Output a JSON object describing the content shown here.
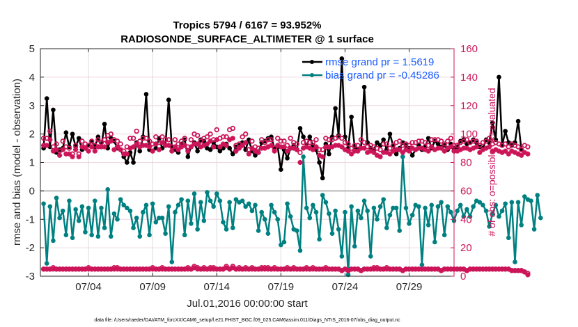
{
  "chart_data": {
    "type": "line",
    "title": [
      "Tropics 5794 / 6167 = 93.952%",
      "RADIOSONDE_SURFACE_ALTIMETER @ 1 surface"
    ],
    "xlabel": "Jul.01,2016 00:00:00 start",
    "ylabel": "rmse and bias (model - observation)",
    "y2label": "# of obs: o=possible; ∗=evaluated",
    "ylim": [
      -3,
      5
    ],
    "y2lim": [
      0,
      160
    ],
    "yticks": [
      "-3",
      "-2",
      "-1",
      "0",
      "1",
      "2",
      "3",
      "4",
      "5"
    ],
    "y2ticks": [
      "0",
      "20",
      "40",
      "60",
      "80",
      "100",
      "120",
      "140",
      "160"
    ],
    "xticks": [
      "07/04",
      "07/09",
      "07/14",
      "07/19",
      "07/24",
      "07/29"
    ],
    "xtick_days": [
      3,
      8,
      13,
      18,
      23,
      28
    ],
    "xlim_days": [
      -0.75,
      31.5
    ],
    "x_start_day": -0.5,
    "x_step_day": 0.25,
    "legend_position": "top-right",
    "series": [
      {
        "name": "rmse grand pr = 1.5619",
        "color": "#000000",
        "axis": "left",
        "values": [
          1.5,
          3.25,
          1.55,
          2.85,
          1.35,
          1.45,
          1.5,
          2.05,
          1.55,
          2.0,
          1.55,
          1.85,
          1.45,
          1.5,
          1.6,
          1.75,
          1.55,
          1.9,
          1.55,
          2.35,
          1.5,
          1.85,
          1.75,
          1.5,
          1.45,
          1.2,
          1.0,
          1.35,
          1.0,
          1.7,
          1.4,
          1.9,
          3.4,
          1.45,
          1.4,
          1.5,
          1.85,
          1.5,
          1.6,
          3.2,
          1.55,
          1.45,
          1.35,
          1.65,
          1.8,
          1.2,
          1.55,
          1.7,
          1.4,
          1.8,
          1.75,
          1.5,
          1.45,
          1.7,
          1.55,
          1.4,
          1.5,
          1.65,
          1.5,
          1.3,
          1.55,
          1.6,
          1.7,
          1.45,
          1.8,
          1.4,
          1.25,
          1.35,
          1.7,
          1.75,
          1.85,
          1.9,
          1.5,
          1.55,
          0.75,
          1.45,
          1.15,
          1.5,
          1.6,
          1.45,
          2.2,
          1.9,
          1.55,
          1.9,
          1.6,
          1.45,
          1.0,
          0.45,
          1.65,
          1.3,
          1.9,
          2.9,
          1.95,
          4.65,
          1.9,
          1.5,
          2.6,
          1.55,
          1.45,
          1.5,
          3.65,
          1.7,
          1.5,
          1.45,
          1.7,
          1.6,
          1.8,
          1.45,
          2.0,
          1.6,
          1.3,
          1.5,
          1.7,
          1.6,
          1.5,
          1.25,
          1.45,
          1.6,
          1.45,
          1.55,
          1.85,
          1.5,
          1.75,
          1.65,
          1.55,
          1.6,
          1.45,
          1.65,
          1.5,
          1.55,
          1.75,
          1.8,
          1.65,
          1.7,
          1.8,
          1.7,
          1.55,
          1.5,
          1.8,
          1.7,
          2.4,
          1.8,
          4.0,
          1.6,
          2.1,
          1.7,
          1.6,
          1.7,
          2.45,
          1.45
        ]
      },
      {
        "name": "bias grand pr = -0.45286",
        "color": "#008080",
        "axis": "left",
        "values": [
          -0.45,
          -2.55,
          -0.55,
          -1.75,
          -0.25,
          -0.95,
          -0.7,
          -1.55,
          -0.35,
          -1.65,
          -0.65,
          -1.05,
          -0.55,
          -1.45,
          -0.6,
          -1.55,
          -0.35,
          -1.6,
          -0.6,
          -1.3,
          0.05,
          -1.6,
          -0.8,
          -1.0,
          -0.3,
          -0.5,
          -0.6,
          -0.7,
          -1.3,
          -0.95,
          -1.6,
          -0.75,
          -0.5,
          -1.55,
          -0.45,
          -1.1,
          -0.95,
          -0.95,
          -1.5,
          -0.55,
          -2.5,
          -0.75,
          -0.5,
          -0.3,
          -1.55,
          -0.35,
          -1.15,
          -0.1,
          -1.35,
          -0.4,
          -1.05,
          -0.05,
          -0.35,
          -0.55,
          -0.1,
          -0.35,
          -1.1,
          -1.35,
          -0.4,
          -1.3,
          -0.3,
          -0.4,
          -0.35,
          -0.55,
          -0.45,
          -0.7,
          -0.5,
          -1.4,
          -0.75,
          -1.0,
          -1.5,
          -0.5,
          -0.75,
          -1.0,
          -1.9,
          -1.8,
          -0.45,
          -0.9,
          -1.35,
          -1.4,
          -2.1,
          1.2,
          -0.6,
          -0.95,
          -0.5,
          -0.75,
          -1.7,
          -0.15,
          -0.4,
          -0.8,
          -1.5,
          -0.7,
          -1.35,
          -2.3,
          -0.75,
          -2.95,
          -0.55,
          -1.95,
          -0.7,
          -0.95,
          -0.35,
          -0.7,
          -2.3,
          -0.6,
          -1.0,
          -0.55,
          -0.3,
          -1.3,
          -0.85,
          -0.6,
          -0.6,
          -1.4,
          1.2,
          -0.6,
          -1.15,
          -0.85,
          -0.5,
          -0.55,
          -2.6,
          -0.6,
          -1.2,
          -0.5,
          -1.8,
          -0.55,
          -0.4,
          -1.55,
          -0.55,
          -0.75,
          -1.05,
          -0.7,
          -0.5,
          -0.9,
          -0.65,
          -0.9,
          -0.55,
          -0.35,
          -0.4,
          -0.5,
          -0.7,
          -1.25,
          -0.8,
          -0.5,
          -0.9,
          -0.7,
          -0.45,
          -1.65,
          -0.4,
          -2.5,
          -0.4,
          -1.2,
          -0.2,
          -0.3,
          -0.35,
          -1.35,
          -0.15,
          -0.95
        ]
      },
      {
        "name": "possible obs",
        "color": "#cc1559",
        "axis": "right",
        "marker": "o",
        "values": [
          97,
          97,
          102,
          91,
          93,
          88,
          95,
          91,
          90,
          86,
          92,
          86,
          95,
          93,
          92,
          95,
          92,
          96,
          94,
          96,
          99,
          100,
          96,
          95,
          93,
          88,
          91,
          97,
          97,
          102,
          95,
          97,
          97,
          95,
          93,
          98,
          94,
          98,
          96,
          96,
          91,
          96,
          93,
          95,
          97,
          91,
          96,
          100,
          99,
          95,
          97,
          98,
          100,
          96,
          103,
          97,
          98,
          98,
          103,
          104,
          92,
          93,
          98,
          100,
          89,
          95,
          91,
          90,
          96,
          94,
          96,
          96,
          90,
          97,
          95,
          95,
          92,
          97,
          94,
          93,
          87,
          94,
          95,
          94,
          94,
          96,
          89,
          89,
          97,
          96,
          96,
          97,
          98,
          97,
          94,
          93,
          90,
          92,
          92,
          96,
          94,
          91,
          92,
          91,
          90,
          89,
          93,
          93,
          90,
          92,
          94,
          95,
          92,
          93,
          92,
          94,
          94,
          95,
          95,
          94,
          92,
          96,
          96,
          96,
          95,
          93,
          95,
          97,
          92,
          92,
          94,
          95,
          96,
          94,
          95,
          95,
          92,
          94,
          95,
          97,
          93,
          94,
          93,
          92,
          93,
          91,
          93,
          92,
          91,
          89,
          92,
          91
        ],
        "bottom_values": [
          5,
          5,
          5,
          6,
          5,
          5,
          5,
          5,
          5,
          5,
          5,
          5,
          5,
          5,
          6,
          5,
          5,
          5,
          5,
          5,
          5,
          5,
          6,
          6,
          5,
          5,
          5,
          5,
          5,
          5,
          5,
          5,
          5,
          5,
          6,
          5,
          5,
          6,
          5,
          5,
          5,
          5,
          5,
          5,
          5,
          6,
          5,
          7,
          6,
          5,
          6,
          5,
          6,
          6,
          5,
          5,
          5,
          7,
          5,
          7,
          5,
          6,
          5,
          6,
          5,
          6,
          5,
          5,
          6,
          6,
          6,
          5,
          6,
          5,
          5,
          5,
          6,
          5,
          6,
          5,
          5,
          5,
          6,
          5,
          6,
          5,
          5,
          5,
          6,
          5,
          5,
          5,
          5,
          4,
          5,
          4,
          5,
          5,
          5,
          4,
          5,
          5,
          5,
          6,
          6,
          5,
          5,
          6,
          5,
          5,
          5,
          5,
          4,
          5,
          5,
          5,
          5,
          5,
          5,
          5,
          5,
          5,
          5,
          5,
          4,
          5,
          5,
          5,
          5,
          5,
          5,
          5,
          4,
          5,
          5,
          5,
          5,
          5,
          5,
          5,
          5,
          5,
          5,
          5,
          5,
          5,
          4,
          4,
          4,
          4,
          3,
          2
        ]
      },
      {
        "name": "evaluated obs",
        "color": "#cc1559",
        "axis": "right",
        "marker": "*",
        "values": [
          92,
          92,
          96,
          88,
          89,
          85,
          89,
          86,
          86,
          84,
          89,
          84,
          91,
          90,
          88,
          91,
          88,
          91,
          91,
          91,
          94,
          95,
          89,
          91,
          89,
          86,
          86,
          90,
          91,
          93,
          91,
          92,
          92,
          91,
          88,
          93,
          89,
          94,
          92,
          92,
          88,
          91,
          89,
          91,
          92,
          88,
          91,
          93,
          93,
          91,
          92,
          93,
          95,
          91,
          96,
          91,
          93,
          92,
          96,
          97,
          88,
          90,
          92,
          94,
          86,
          90,
          88,
          87,
          90,
          90,
          91,
          92,
          88,
          92,
          91,
          91,
          88,
          90,
          90,
          89,
          80,
          90,
          91,
          90,
          89,
          91,
          85,
          84,
          91,
          91,
          91,
          92,
          92,
          91,
          89,
          88,
          86,
          88,
          88,
          90,
          90,
          87,
          88,
          87,
          85,
          84,
          87,
          87,
          86,
          88,
          89,
          89,
          87,
          89,
          88,
          90,
          89,
          90,
          90,
          89,
          88,
          91,
          89,
          90,
          90,
          88,
          90,
          91,
          88,
          88,
          89,
          90,
          90,
          89,
          90,
          91,
          87,
          89,
          90,
          91,
          88,
          89,
          88,
          87,
          88,
          86,
          88,
          87,
          86,
          85,
          87,
          86
        ],
        "bottom_values": [
          5,
          5,
          5,
          5,
          5,
          5,
          5,
          5,
          5,
          5,
          5,
          5,
          5,
          5,
          5,
          5,
          5,
          5,
          5,
          5,
          5,
          5,
          5,
          5,
          5,
          5,
          5,
          5,
          5,
          5,
          5,
          5,
          5,
          5,
          5,
          5,
          5,
          5,
          5,
          5,
          5,
          5,
          5,
          5,
          5,
          5,
          5,
          6,
          5,
          5,
          5,
          5,
          5,
          5,
          5,
          5,
          5,
          6,
          5,
          6,
          5,
          5,
          5,
          5,
          5,
          5,
          5,
          5,
          5,
          5,
          5,
          5,
          5,
          5,
          5,
          5,
          5,
          5,
          5,
          5,
          5,
          5,
          5,
          5,
          5,
          5,
          5,
          5,
          5,
          5,
          5,
          5,
          5,
          4,
          5,
          4,
          5,
          5,
          5,
          4,
          5,
          5,
          5,
          5,
          5,
          5,
          5,
          5,
          5,
          5,
          5,
          5,
          4,
          5,
          5,
          5,
          5,
          5,
          5,
          5,
          5,
          5,
          5,
          5,
          4,
          5,
          5,
          5,
          5,
          5,
          5,
          5,
          4,
          5,
          5,
          5,
          5,
          5,
          5,
          5,
          5,
          5,
          5,
          5,
          5,
          5,
          4,
          4,
          4,
          4,
          3,
          1
        ]
      }
    ],
    "zero_line": true,
    "grid": true
  },
  "footer": "data file: /Users/raeder/DAI/ATM_forcXX/CAM6_setup/f.e21.FHIST_BGC.f09_025.CAM6assim.011/Diags_NTrS_2016-07/obs_diag_output.nc"
}
